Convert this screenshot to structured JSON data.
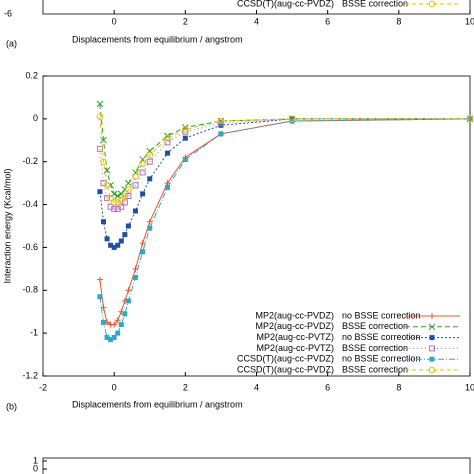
{
  "chart_data": [
    {
      "type": "line",
      "label": "(a)",
      "xlabel": "Displacements from equilibrium / angstrom",
      "xlim": [
        -2,
        10
      ],
      "xticks": [
        0,
        2,
        4,
        6,
        8,
        10
      ],
      "yticks": [
        -6
      ],
      "series": [
        {
          "name": "CCSD(T)(aug-cc-PVDZ)",
          "note": "BSSE correction",
          "color": "#e6c200",
          "marker": "circle-open",
          "dash": "4,3",
          "values": []
        }
      ]
    },
    {
      "type": "line",
      "label": "(b)",
      "xlabel": "Displacements from equilibrium / angstrom",
      "ylabel": "Interaction energy  (Kcal/mol)",
      "xlim": [
        -2,
        10
      ],
      "xticks": [
        -2,
        0,
        2,
        4,
        6,
        8,
        10
      ],
      "ylim": [
        -1.2,
        0.2
      ],
      "yticks": [
        -1.2,
        -1,
        -0.8,
        -0.6,
        -0.4,
        -0.2,
        0,
        0.2
      ],
      "x": [
        -0.4,
        -0.3,
        -0.2,
        -0.1,
        0,
        0.1,
        0.2,
        0.3,
        0.4,
        0.6,
        0.8,
        1.0,
        1.5,
        2,
        3,
        5,
        10
      ],
      "series": [
        {
          "name": "MP2(aug-cc-PVDZ)",
          "note": "no BSSE correction",
          "color": "#e8542a",
          "marker": "plus",
          "dash": "none",
          "values": [
            -0.75,
            -0.88,
            -0.95,
            -0.96,
            -0.96,
            -0.94,
            -0.9,
            -0.85,
            -0.8,
            -0.7,
            -0.58,
            -0.48,
            -0.3,
            -0.18,
            -0.07,
            -0.01,
            0
          ]
        },
        {
          "name": "MP2(aug-cc-PVDZ)",
          "note": "BSSE correction",
          "color": "#2ca02c",
          "marker": "cross",
          "dash": "5,3",
          "values": [
            0.07,
            -0.1,
            -0.24,
            -0.31,
            -0.35,
            -0.36,
            -0.35,
            -0.33,
            -0.3,
            -0.25,
            -0.19,
            -0.15,
            -0.08,
            -0.04,
            -0.01,
            0,
            0
          ]
        },
        {
          "name": "MP2(aug-cc-PVTZ)",
          "note": "no BSSE correction",
          "color": "#1f4fa0",
          "marker": "square",
          "dash": "2,2",
          "values": [
            -0.34,
            -0.48,
            -0.56,
            -0.59,
            -0.6,
            -0.59,
            -0.57,
            -0.54,
            -0.5,
            -0.43,
            -0.35,
            -0.28,
            -0.16,
            -0.09,
            -0.03,
            0,
            0
          ]
        },
        {
          "name": "MP2(aug-cc-PVTZ)",
          "note": "BSSE correction",
          "color": "#b070c0",
          "marker": "square-open",
          "dash": "1,3",
          "values": [
            -0.14,
            -0.3,
            -0.37,
            -0.41,
            -0.42,
            -0.42,
            -0.41,
            -0.39,
            -0.36,
            -0.31,
            -0.25,
            -0.2,
            -0.11,
            -0.06,
            -0.02,
            0,
            0
          ]
        },
        {
          "name": "CCSD(T)(aug-cc-PVDZ)",
          "note": "no BSSE correction",
          "color": "#30a8c0",
          "marker": "square",
          "dash": "6,2,1,2",
          "values": [
            -0.83,
            -0.95,
            -1.02,
            -1.03,
            -1.02,
            -1.0,
            -0.96,
            -0.91,
            -0.85,
            -0.74,
            -0.62,
            -0.51,
            -0.32,
            -0.19,
            -0.07,
            -0.01,
            0
          ]
        },
        {
          "name": "CCSD(T)(aug-cc-PVDZ)",
          "note": "BSSE correction",
          "color": "#e6c200",
          "marker": "circle-open",
          "dash": "4,3",
          "values": [
            0.01,
            -0.2,
            -0.31,
            -0.37,
            -0.39,
            -0.39,
            -0.38,
            -0.36,
            -0.33,
            -0.27,
            -0.21,
            -0.17,
            -0.09,
            -0.05,
            -0.01,
            0,
            0
          ]
        }
      ]
    },
    {
      "type": "line",
      "yticks": [
        0,
        1
      ]
    }
  ]
}
